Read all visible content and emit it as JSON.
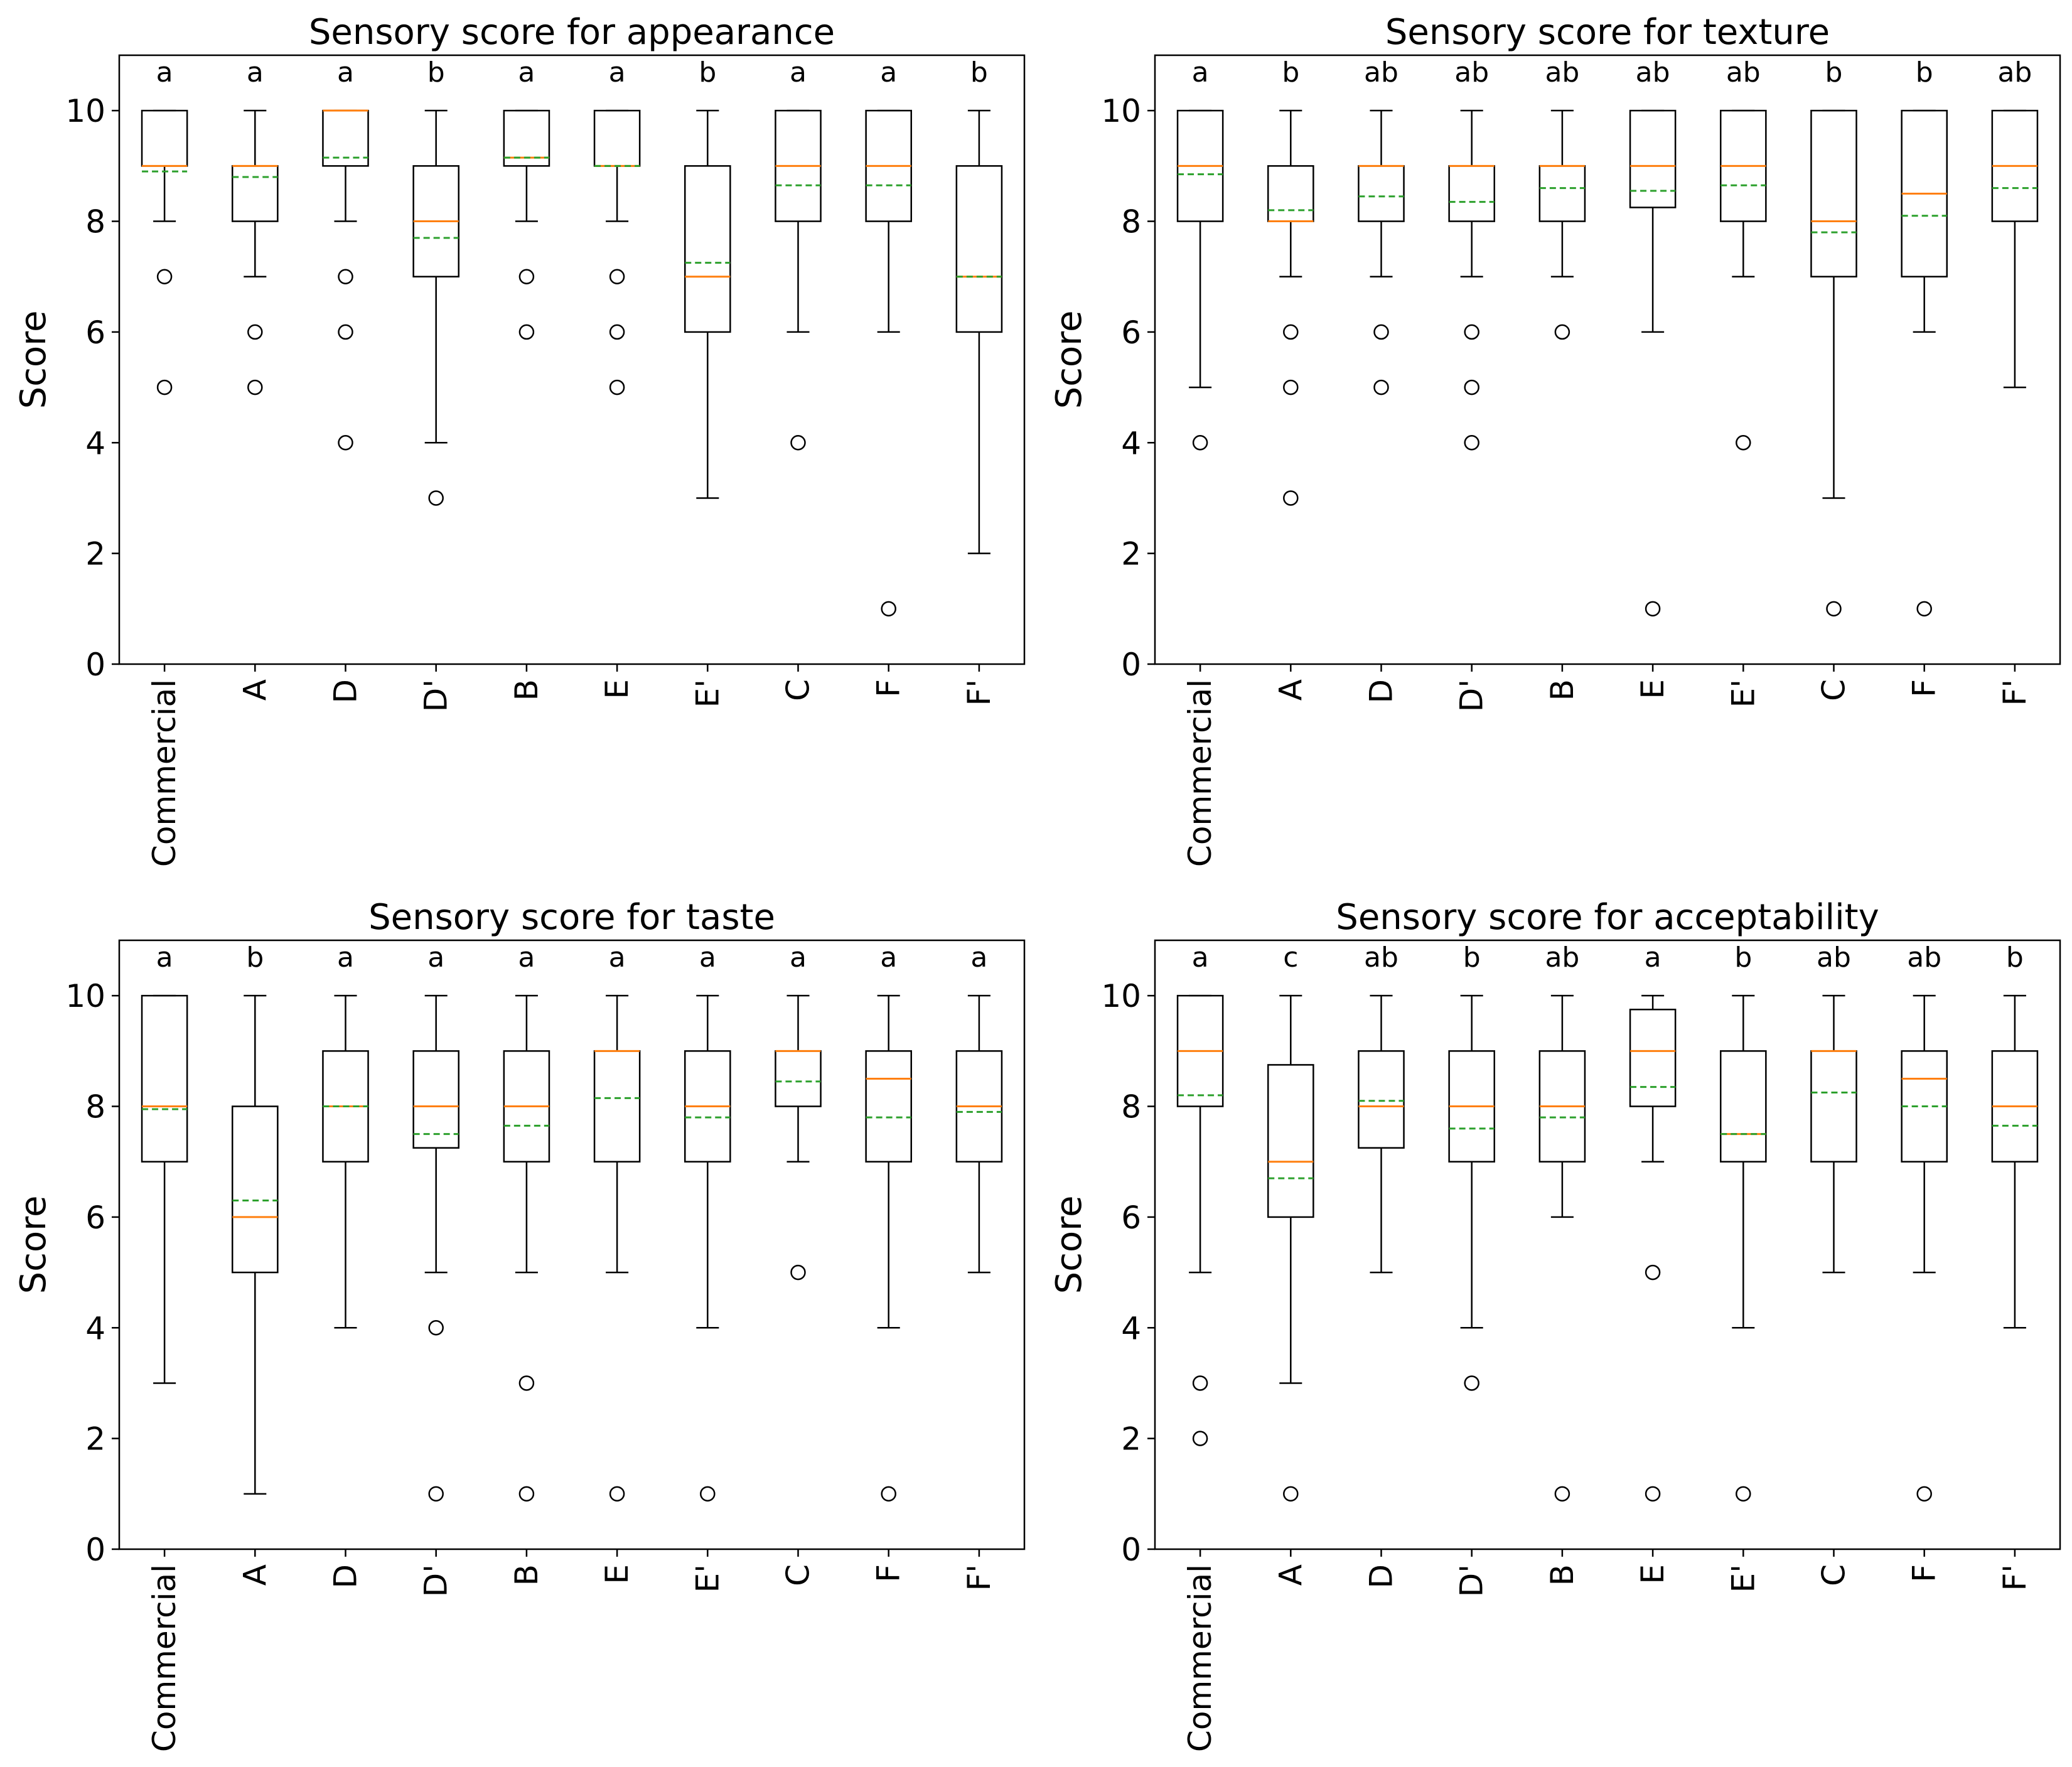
{
  "colors": {
    "box": "#000000",
    "median": "#ff7f0e",
    "mean": "#2ca02c",
    "background": "#ffffff"
  },
  "chart_data": [
    {
      "type": "boxplot",
      "title": "Sensory score for appearance",
      "xlabel": "",
      "ylabel": "Score",
      "ylim": [
        0,
        11
      ],
      "yticks": [
        0,
        2,
        4,
        6,
        8,
        10
      ],
      "categories": [
        "Commercial",
        "A",
        "D",
        "D'",
        "B",
        "E",
        "E'",
        "C",
        "F",
        "F'"
      ],
      "letters": [
        "a",
        "a",
        "a",
        "b",
        "a",
        "a",
        "b",
        "a",
        "a",
        "b"
      ],
      "boxes": [
        {
          "whisker_low": 8,
          "q1": 9,
          "median": 9,
          "q3": 10,
          "whisker_high": 10,
          "mean": 8.9,
          "outliers": [
            7,
            5
          ]
        },
        {
          "whisker_low": 7,
          "q1": 8,
          "median": 9,
          "q3": 9,
          "whisker_high": 10,
          "mean": 8.8,
          "outliers": [
            6,
            5
          ]
        },
        {
          "whisker_low": 8,
          "q1": 9,
          "median": 10,
          "q3": 10,
          "whisker_high": 10,
          "mean": 9.15,
          "outliers": [
            7,
            6,
            4
          ]
        },
        {
          "whisker_low": 4,
          "q1": 7,
          "median": 8,
          "q3": 9,
          "whisker_high": 10,
          "mean": 7.7,
          "outliers": [
            3
          ]
        },
        {
          "whisker_low": 8,
          "q1": 9,
          "median": 9.15,
          "q3": 10,
          "whisker_high": 10,
          "mean": 9.15,
          "outliers": [
            7,
            6
          ]
        },
        {
          "whisker_low": 8,
          "q1": 9,
          "median": 9,
          "q3": 10,
          "whisker_high": 10,
          "mean": 9.0,
          "outliers": [
            7,
            6,
            5
          ]
        },
        {
          "whisker_low": 3,
          "q1": 6,
          "median": 7,
          "q3": 9,
          "whisker_high": 10,
          "mean": 7.25,
          "outliers": []
        },
        {
          "whisker_low": 6,
          "q1": 8,
          "median": 9,
          "q3": 10,
          "whisker_high": 10,
          "mean": 8.65,
          "outliers": [
            4
          ]
        },
        {
          "whisker_low": 6,
          "q1": 8,
          "median": 9,
          "q3": 10,
          "whisker_high": 10,
          "mean": 8.65,
          "outliers": [
            1
          ]
        },
        {
          "whisker_low": 2,
          "q1": 6,
          "median": 7,
          "q3": 9,
          "whisker_high": 10,
          "mean": 7.0,
          "outliers": []
        }
      ]
    },
    {
      "type": "boxplot",
      "title": "Sensory score for texture",
      "xlabel": "",
      "ylabel": "Score",
      "ylim": [
        0,
        11
      ],
      "yticks": [
        0,
        2,
        4,
        6,
        8,
        10
      ],
      "categories": [
        "Commercial",
        "A",
        "D",
        "D'",
        "B",
        "E",
        "E'",
        "C",
        "F",
        "F'"
      ],
      "letters": [
        "a",
        "b",
        "ab",
        "ab",
        "ab",
        "ab",
        "ab",
        "b",
        "b",
        "ab"
      ],
      "boxes": [
        {
          "whisker_low": 5,
          "q1": 8,
          "median": 9,
          "q3": 10,
          "whisker_high": 10,
          "mean": 8.85,
          "outliers": [
            4
          ]
        },
        {
          "whisker_low": 7,
          "q1": 8,
          "median": 8,
          "q3": 9,
          "whisker_high": 10,
          "mean": 8.2,
          "outliers": [
            6,
            5,
            3
          ]
        },
        {
          "whisker_low": 7,
          "q1": 8,
          "median": 9,
          "q3": 9,
          "whisker_high": 10,
          "mean": 8.45,
          "outliers": [
            6,
            5
          ]
        },
        {
          "whisker_low": 7,
          "q1": 8,
          "median": 9,
          "q3": 9,
          "whisker_high": 10,
          "mean": 8.35,
          "outliers": [
            6,
            5,
            4
          ]
        },
        {
          "whisker_low": 7,
          "q1": 8,
          "median": 9,
          "q3": 9,
          "whisker_high": 10,
          "mean": 8.6,
          "outliers": [
            6
          ]
        },
        {
          "whisker_low": 6,
          "q1": 8.25,
          "median": 9,
          "q3": 10,
          "whisker_high": 10,
          "mean": 8.55,
          "outliers": [
            1
          ]
        },
        {
          "whisker_low": 7,
          "q1": 8,
          "median": 9,
          "q3": 10,
          "whisker_high": 10,
          "mean": 8.65,
          "outliers": [
            4
          ]
        },
        {
          "whisker_low": 3,
          "q1": 7,
          "median": 8,
          "q3": 10,
          "whisker_high": 10,
          "mean": 7.8,
          "outliers": [
            1
          ]
        },
        {
          "whisker_low": 6,
          "q1": 7,
          "median": 8.5,
          "q3": 10,
          "whisker_high": 10,
          "mean": 8.1,
          "outliers": [
            1
          ]
        },
        {
          "whisker_low": 5,
          "q1": 8,
          "median": 9,
          "q3": 10,
          "whisker_high": 10,
          "mean": 8.6,
          "outliers": []
        }
      ]
    },
    {
      "type": "boxplot",
      "title": "Sensory score for taste",
      "xlabel": "",
      "ylabel": "Score",
      "ylim": [
        0,
        11
      ],
      "yticks": [
        0,
        2,
        4,
        6,
        8,
        10
      ],
      "categories": [
        "Commercial",
        "A",
        "D",
        "D'",
        "B",
        "E",
        "E'",
        "C",
        "F",
        "F'"
      ],
      "letters": [
        "a",
        "b",
        "a",
        "a",
        "a",
        "a",
        "a",
        "a",
        "a",
        "a"
      ],
      "boxes": [
        {
          "whisker_low": 3,
          "q1": 7,
          "median": 8,
          "q3": 10,
          "whisker_high": 10,
          "mean": 7.95,
          "outliers": []
        },
        {
          "whisker_low": 1,
          "q1": 5,
          "median": 6,
          "q3": 8,
          "whisker_high": 10,
          "mean": 6.3,
          "outliers": []
        },
        {
          "whisker_low": 4,
          "q1": 7,
          "median": 8,
          "q3": 9,
          "whisker_high": 10,
          "mean": 8.0,
          "outliers": []
        },
        {
          "whisker_low": 5,
          "q1": 7.25,
          "median": 8,
          "q3": 9,
          "whisker_high": 10,
          "mean": 7.5,
          "outliers": [
            4,
            1
          ]
        },
        {
          "whisker_low": 5,
          "q1": 7,
          "median": 8,
          "q3": 9,
          "whisker_high": 10,
          "mean": 7.65,
          "outliers": [
            3,
            1
          ]
        },
        {
          "whisker_low": 5,
          "q1": 7,
          "median": 9,
          "q3": 9,
          "whisker_high": 10,
          "mean": 8.15,
          "outliers": [
            1
          ]
        },
        {
          "whisker_low": 4,
          "q1": 7,
          "median": 8,
          "q3": 9,
          "whisker_high": 10,
          "mean": 7.8,
          "outliers": [
            1
          ]
        },
        {
          "whisker_low": 7,
          "q1": 8,
          "median": 9,
          "q3": 9,
          "whisker_high": 10,
          "mean": 8.45,
          "outliers": [
            5
          ]
        },
        {
          "whisker_low": 4,
          "q1": 7,
          "median": 8.5,
          "q3": 9,
          "whisker_high": 10,
          "mean": 7.8,
          "outliers": [
            1
          ]
        },
        {
          "whisker_low": 5,
          "q1": 7,
          "median": 8,
          "q3": 9,
          "whisker_high": 10,
          "mean": 7.9,
          "outliers": []
        }
      ]
    },
    {
      "type": "boxplot",
      "title": "Sensory score for acceptability",
      "xlabel": "",
      "ylabel": "Score",
      "ylim": [
        0,
        11
      ],
      "yticks": [
        0,
        2,
        4,
        6,
        8,
        10
      ],
      "categories": [
        "Commercial",
        "A",
        "D",
        "D'",
        "B",
        "E",
        "E'",
        "C",
        "F",
        "F'"
      ],
      "letters": [
        "a",
        "c",
        "ab",
        "b",
        "ab",
        "a",
        "b",
        "ab",
        "ab",
        "b"
      ],
      "boxes": [
        {
          "whisker_low": 5,
          "q1": 8,
          "median": 9,
          "q3": 10,
          "whisker_high": 10,
          "mean": 8.2,
          "outliers": [
            3,
            2
          ]
        },
        {
          "whisker_low": 3,
          "q1": 6,
          "median": 7,
          "q3": 8.75,
          "whisker_high": 10,
          "mean": 6.7,
          "outliers": [
            1
          ]
        },
        {
          "whisker_low": 5,
          "q1": 7.25,
          "median": 8,
          "q3": 9,
          "whisker_high": 10,
          "mean": 8.1,
          "outliers": []
        },
        {
          "whisker_low": 4,
          "q1": 7,
          "median": 8,
          "q3": 9,
          "whisker_high": 10,
          "mean": 7.6,
          "outliers": [
            3
          ]
        },
        {
          "whisker_low": 6,
          "q1": 7,
          "median": 8,
          "q3": 9,
          "whisker_high": 10,
          "mean": 7.8,
          "outliers": [
            1
          ]
        },
        {
          "whisker_low": 7,
          "q1": 8,
          "median": 9,
          "q3": 9.75,
          "whisker_high": 10,
          "mean": 8.35,
          "outliers": [
            5,
            1
          ]
        },
        {
          "whisker_low": 4,
          "q1": 7,
          "median": 7.5,
          "q3": 9,
          "whisker_high": 10,
          "mean": 7.5,
          "outliers": [
            1
          ]
        },
        {
          "whisker_low": 5,
          "q1": 7,
          "median": 9,
          "q3": 9,
          "whisker_high": 10,
          "mean": 8.25,
          "outliers": []
        },
        {
          "whisker_low": 5,
          "q1": 7,
          "median": 8.5,
          "q3": 9,
          "whisker_high": 10,
          "mean": 8.0,
          "outliers": [
            1
          ]
        },
        {
          "whisker_low": 4,
          "q1": 7,
          "median": 8,
          "q3": 9,
          "whisker_high": 10,
          "mean": 7.65,
          "outliers": []
        }
      ]
    }
  ]
}
